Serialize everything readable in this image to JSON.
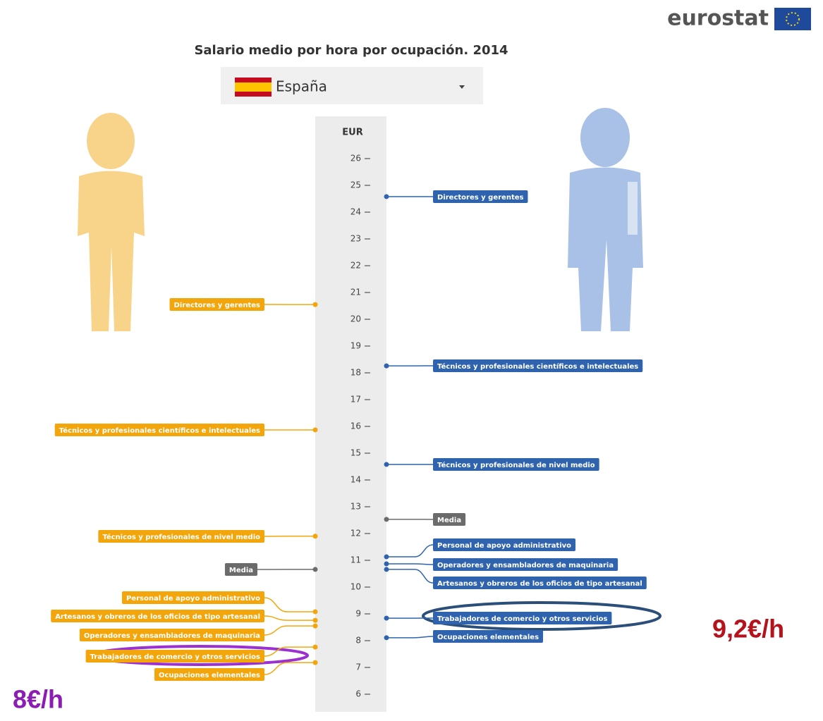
{
  "logo": "eurostat",
  "chart_data": {
    "type": "dot-axis",
    "title": "Salario medio por hora por ocupación. 2014",
    "country": "España",
    "y_label": "EUR",
    "ylim": [
      6,
      26
    ],
    "yticks": [
      6,
      7,
      8,
      9,
      10,
      11,
      12,
      13,
      14,
      15,
      16,
      17,
      18,
      19,
      20,
      21,
      22,
      23,
      24,
      25,
      26
    ],
    "categories": [
      "Directores y gerentes",
      "Técnicos y profesionales científicos e intelectuales",
      "Técnicos y profesionales de nivel medio",
      "Media",
      "Personal de apoyo administrativo",
      "Operadores y ensambladores de maquinaria",
      "Artesanos y obreros de los oficios de tipo artesanal",
      "Trabajadores de comercio y otros servicios",
      "Ocupaciones elementales"
    ],
    "average_color": "#6b6b6b",
    "series": [
      {
        "color": "#f2a60c",
        "values": [
          20.55,
          15.87,
          11.9,
          10.66,
          9.08,
          8.55,
          8.76,
          7.76,
          7.18
        ]
      },
      {
        "color": "#2f63ad",
        "values": [
          24.58,
          18.26,
          14.58,
          12.53,
          11.13,
          10.87,
          10.66,
          8.84,
          8.11
        ]
      }
    ],
    "annotations": [
      {
        "text": "8€/h",
        "color": "#8b1db5"
      },
      {
        "text": "9,2€/h",
        "color": "#b5121b"
      }
    ]
  }
}
